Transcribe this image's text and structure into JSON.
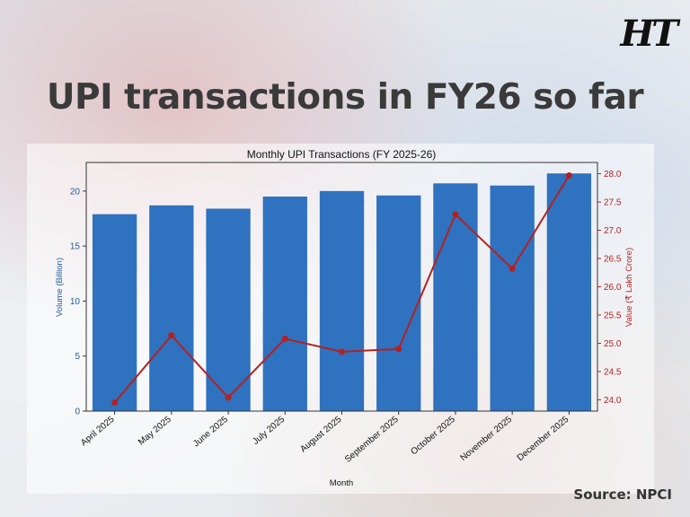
{
  "brand": {
    "logo_text": "HT"
  },
  "headline": "UPI transactions in FY26 so far",
  "source": "Source: NPCI",
  "colors": {
    "bar": "#2f72bf",
    "line": "#b22222",
    "left_axis": "#1f5c99",
    "right_axis": "#b22222"
  },
  "chart_data": {
    "type": "bar",
    "title": "Monthly UPI Transactions (FY 2025-26)",
    "xlabel": "Month",
    "ylabel": "Volume (Billion)",
    "y2label": "Value (₹ Lakh Crore)",
    "categories": [
      "April 2025",
      "May 2025",
      "June 2025",
      "July 2025",
      "August 2025",
      "September 2025",
      "October 2025",
      "November 2025",
      "December 2025"
    ],
    "series": [
      {
        "name": "Volume (Billion)",
        "type": "bar",
        "axis": "left",
        "values": [
          17.9,
          18.7,
          18.4,
          19.5,
          20.0,
          19.6,
          20.7,
          20.5,
          21.6
        ]
      },
      {
        "name": "Value (₹ Lakh Crore)",
        "type": "line",
        "axis": "right",
        "values": [
          23.95,
          25.14,
          24.04,
          25.08,
          24.85,
          24.9,
          27.28,
          26.32,
          27.97
        ]
      }
    ],
    "ylim": [
      0,
      22.6
    ],
    "y2lim": [
      23.8,
      28.2
    ],
    "yticks": [
      0,
      5,
      10,
      15,
      20
    ],
    "y2ticks": [
      "24.0",
      "24.5",
      "25.0",
      "25.5",
      "26.0",
      "26.5",
      "27.0",
      "27.5",
      "28.0"
    ],
    "grid": false,
    "legend": "none"
  }
}
